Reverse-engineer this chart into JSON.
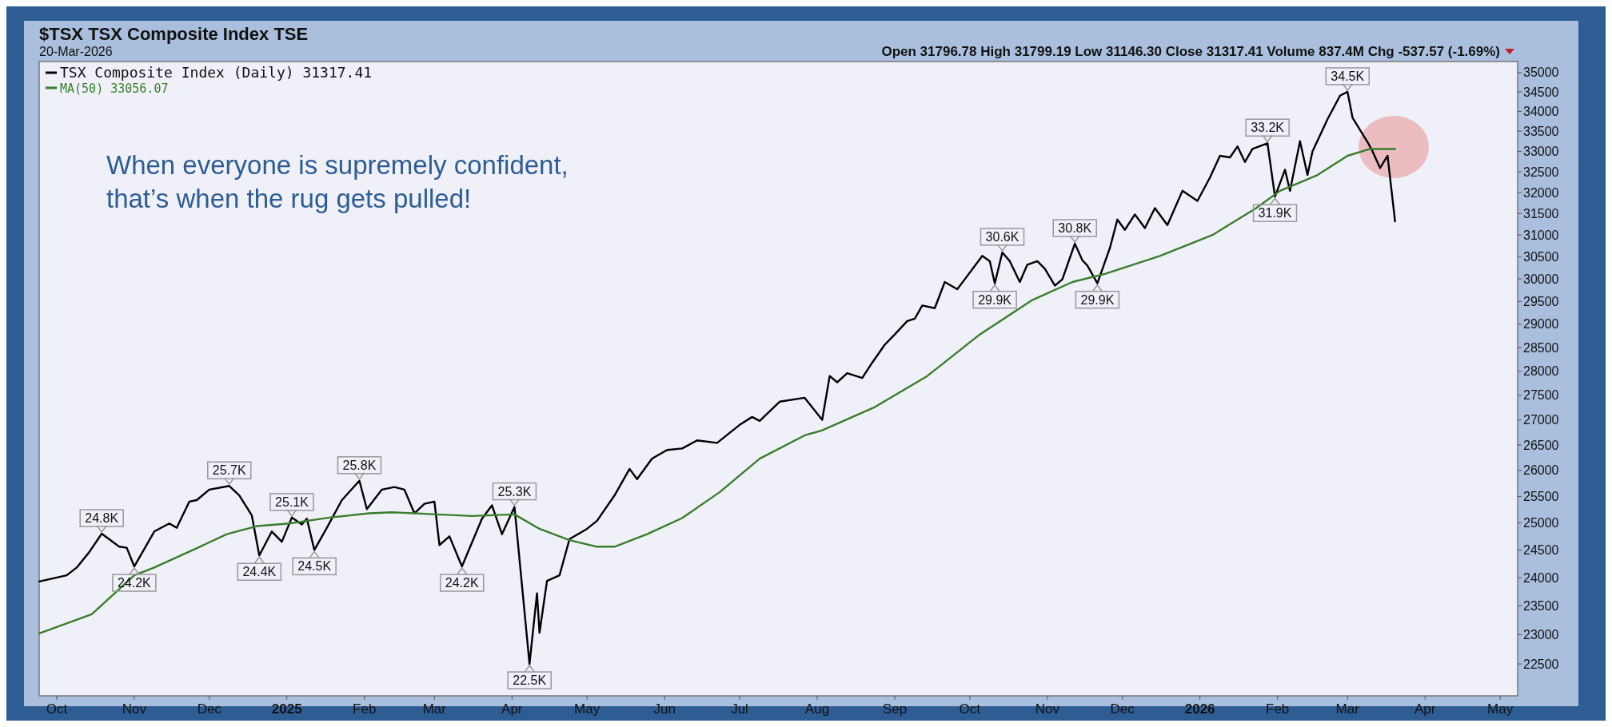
{
  "chart_data": {
    "type": "line",
    "title": "$TSX TSX Composite Index TSE",
    "subtitle": "20-Mar-2026",
    "annotations": [
      "Open 31796.78 High 31799.19 Low 31146.30 Close 31317.41 Volume 837.4M Chg -537.57 (-1.69%)",
      "When everyone is supremely confident,\nthat’s when the rug gets pulled!",
      {
        "text": "24.8K",
        "x": "2024-10-19",
        "y": 24800
      },
      {
        "text": "24.2K",
        "x": "2024-11-01",
        "y": 24200
      },
      {
        "text": "25.7K",
        "x": "2024-12-09",
        "y": 25700
      },
      {
        "text": "24.4K",
        "x": "2024-12-21",
        "y": 24400
      },
      {
        "text": "25.1K",
        "x": "2025-01-03",
        "y": 25100
      },
      {
        "text": "24.5K",
        "x": "2025-01-12",
        "y": 24500
      },
      {
        "text": "25.8K",
        "x": "2025-01-30",
        "y": 25800
      },
      {
        "text": "24.2K",
        "x": "2025-03-12",
        "y": 24200
      },
      {
        "text": "25.3K",
        "x": "2025-04-02",
        "y": 25300
      },
      {
        "text": "22.5K",
        "x": "2025-04-08",
        "y": 22500
      },
      {
        "text": "29.9K",
        "x": "2025-10-11",
        "y": 29900
      },
      {
        "text": "30.6K",
        "x": "2025-10-14",
        "y": 30600
      },
      {
        "text": "30.8K",
        "x": "2025-11-12",
        "y": 30800
      },
      {
        "text": "29.9K",
        "x": "2025-11-21",
        "y": 29900
      },
      {
        "text": "33.2K",
        "x": "2026-01-28",
        "y": 33200
      },
      {
        "text": "31.9K",
        "x": "2026-01-31",
        "y": 31900
      },
      {
        "text": "34.5K",
        "x": "2026-03-01",
        "y": 34500
      }
    ],
    "xlim": [
      "2024-09-24",
      "2026-05-08"
    ],
    "xticks": [
      {
        "value": "2024-10-01",
        "label": "Oct"
      },
      {
        "value": "2024-11-01",
        "label": "Nov"
      },
      {
        "value": "2024-12-01",
        "label": "Dec"
      },
      {
        "value": "2025-01-01",
        "label": "2025"
      },
      {
        "value": "2025-02-01",
        "label": "Feb"
      },
      {
        "value": "2025-03-01",
        "label": "Mar"
      },
      {
        "value": "2025-04-01",
        "label": "Apr"
      },
      {
        "value": "2025-05-01",
        "label": "May"
      },
      {
        "value": "2025-06-01",
        "label": "Jun"
      },
      {
        "value": "2025-07-01",
        "label": "Jul"
      },
      {
        "value": "2025-08-01",
        "label": "Aug"
      },
      {
        "value": "2025-09-01",
        "label": "Sep"
      },
      {
        "value": "2025-10-01",
        "label": "Oct"
      },
      {
        "value": "2025-11-01",
        "label": "Nov"
      },
      {
        "value": "2025-12-01",
        "label": "Dec"
      },
      {
        "value": "2026-01-01",
        "label": "2026"
      },
      {
        "value": "2026-02-01",
        "label": "Feb"
      },
      {
        "value": "2026-03-01",
        "label": "Mar"
      },
      {
        "value": "2026-04-01",
        "label": "Apr"
      },
      {
        "value": "2026-05-01",
        "label": "May"
      }
    ],
    "ylim": [
      21970,
      35290
    ],
    "log": "y",
    "yticks": [
      22500,
      23000,
      23500,
      24000,
      24500,
      25000,
      25500,
      26000,
      26500,
      27000,
      27500,
      28000,
      28500,
      29000,
      29500,
      30000,
      30500,
      31000,
      31500,
      32000,
      32500,
      33000,
      33500,
      34000,
      34500,
      35000
    ],
    "grid": false,
    "legend": "top left",
    "series": [
      {
        "name": "TSX Composite Index (Daily) 31317.41",
        "color": "#000000",
        "x": [
          "2024-09-24",
          "2024-10-05",
          "2024-10-09",
          "2024-10-14",
          "2024-10-19",
          "2024-10-26",
          "2024-10-29",
          "2024-11-01",
          "2024-11-09",
          "2024-11-15",
          "2024-11-18",
          "2024-11-23",
          "2024-11-26",
          "2024-12-01",
          "2024-12-09",
          "2024-12-13",
          "2024-12-18",
          "2024-12-21",
          "2024-12-26",
          "2024-12-30",
          "2025-01-03",
          "2025-01-07",
          "2025-01-09",
          "2025-01-12",
          "2025-01-17",
          "2025-01-23",
          "2025-01-30",
          "2025-02-02",
          "2025-02-08",
          "2025-02-13",
          "2025-02-17",
          "2025-02-21",
          "2025-02-25",
          "2025-03-01",
          "2025-03-03",
          "2025-03-07",
          "2025-03-12",
          "2025-03-20",
          "2025-03-24",
          "2025-03-28",
          "2025-04-02",
          "2025-04-08",
          "2025-04-11",
          "2025-04-12",
          "2025-04-15",
          "2025-04-20",
          "2025-04-24",
          "2025-05-01",
          "2025-05-05",
          "2025-05-12",
          "2025-05-18",
          "2025-05-21",
          "2025-05-27",
          "2025-06-02",
          "2025-06-08",
          "2025-06-14",
          "2025-06-22",
          "2025-07-01",
          "2025-07-06",
          "2025-07-09",
          "2025-07-17",
          "2025-07-27",
          "2025-08-03",
          "2025-08-06",
          "2025-08-09",
          "2025-08-13",
          "2025-08-19",
          "2025-08-23",
          "2025-08-28",
          "2025-09-01",
          "2025-09-06",
          "2025-09-09",
          "2025-09-12",
          "2025-09-17",
          "2025-09-21",
          "2025-09-26",
          "2025-09-29",
          "2025-10-06",
          "2025-10-09",
          "2025-10-11",
          "2025-10-14",
          "2025-10-17",
          "2025-10-21",
          "2025-10-24",
          "2025-10-28",
          "2025-10-31",
          "2025-11-04",
          "2025-11-07",
          "2025-11-12",
          "2025-11-15",
          "2025-11-17",
          "2025-11-21",
          "2025-11-26",
          "2025-11-29",
          "2025-12-02",
          "2025-12-06",
          "2025-12-10",
          "2025-12-14",
          "2025-12-19",
          "2025-12-25",
          "2025-12-31",
          "2026-01-05",
          "2026-01-09",
          "2026-01-13",
          "2026-01-16",
          "2026-01-19",
          "2026-01-22",
          "2026-01-28",
          "2026-01-31",
          "2026-02-04",
          "2026-02-06",
          "2026-02-10",
          "2026-02-13",
          "2026-02-15",
          "2026-02-21",
          "2026-02-26",
          "2026-03-01",
          "2026-03-03",
          "2026-03-09",
          "2026-03-11",
          "2026-03-14",
          "2026-03-17",
          "2026-03-20"
        ],
        "values": [
          23930,
          24040,
          24180,
          24460,
          24800,
          24560,
          24540,
          24200,
          24840,
          24990,
          24910,
          25400,
          25430,
          25630,
          25700,
          25520,
          25140,
          24400,
          24840,
          24650,
          25100,
          24970,
          25080,
          24500,
          24910,
          25430,
          25800,
          25260,
          25630,
          25680,
          25630,
          25180,
          25360,
          25400,
          24590,
          24750,
          24200,
          25080,
          25330,
          24790,
          25300,
          22500,
          23720,
          23030,
          23940,
          24040,
          24700,
          24890,
          25040,
          25520,
          26030,
          25830,
          26230,
          26400,
          26430,
          26590,
          26540,
          26900,
          27060,
          26980,
          27370,
          27450,
          27000,
          27900,
          27770,
          27960,
          27860,
          28180,
          28560,
          28780,
          29070,
          29120,
          29410,
          29350,
          29930,
          29770,
          29990,
          30520,
          30400,
          29900,
          30600,
          30400,
          29930,
          30320,
          30400,
          30230,
          29850,
          29990,
          30800,
          30420,
          30300,
          29900,
          30700,
          31360,
          31120,
          31480,
          31160,
          31630,
          31230,
          32040,
          31800,
          32360,
          32890,
          32850,
          33120,
          32740,
          33060,
          33200,
          31900,
          32550,
          32040,
          33250,
          32420,
          33000,
          33800,
          34400,
          34500,
          33840,
          33230,
          33000,
          32590,
          32890,
          31317.41
        ]
      },
      {
        "name": "MA(50) 33056.07",
        "color": "#3a7d2c",
        "x": [
          "2024-09-24",
          "2024-10-15",
          "2024-11-01",
          "2024-11-09",
          "2024-11-25",
          "2024-12-08",
          "2024-12-20",
          "2025-01-02",
          "2025-01-18",
          "2025-02-03",
          "2025-02-12",
          "2025-03-02",
          "2025-03-16",
          "2025-04-02",
          "2025-04-12",
          "2025-04-24",
          "2025-05-05",
          "2025-05-12",
          "2025-05-25",
          "2025-06-08",
          "2025-06-23",
          "2025-07-09",
          "2025-07-27",
          "2025-08-03",
          "2025-08-24",
          "2025-09-14",
          "2025-10-05",
          "2025-10-26",
          "2025-11-11",
          "2025-11-24",
          "2025-12-16",
          "2026-01-06",
          "2026-01-23",
          "2026-02-02",
          "2026-02-17",
          "2026-03-01",
          "2026-03-10",
          "2026-03-20"
        ],
        "values": [
          23020,
          23350,
          24040,
          24180,
          24510,
          24790,
          24940,
          24990,
          25100,
          25180,
          25200,
          25160,
          25130,
          25160,
          24890,
          24680,
          24560,
          24560,
          24790,
          25090,
          25580,
          26230,
          26690,
          26790,
          27260,
          27900,
          28780,
          29530,
          29930,
          30110,
          30520,
          31000,
          31610,
          32040,
          32420,
          32890,
          33060,
          33056.07
        ]
      }
    ]
  }
}
